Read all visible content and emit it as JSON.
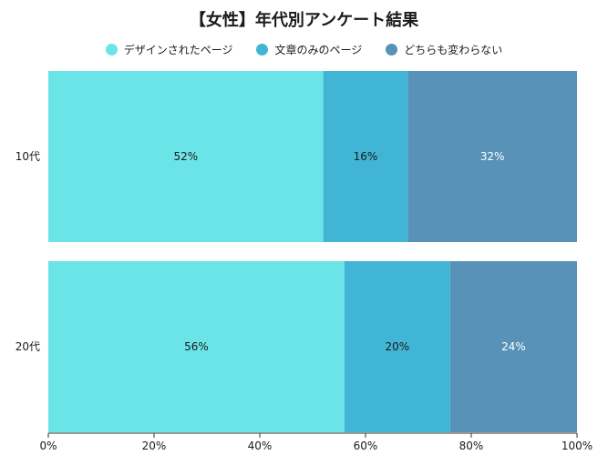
{
  "chart_data": {
    "type": "bar",
    "orientation": "horizontal",
    "stacked": true,
    "title": "【女性】年代別アンケート結果",
    "categories": [
      "10代",
      "20代"
    ],
    "series": [
      {
        "name": "デザインされたページ",
        "values": [
          52,
          56
        ],
        "color": "#6be4e8"
      },
      {
        "name": "文章のみのページ",
        "values": [
          16,
          20
        ],
        "color": "#41b5d5"
      },
      {
        "name": "どちらも変わらない",
        "values": [
          32,
          24
        ],
        "color": "#5892b9"
      }
    ],
    "value_labels": [
      [
        "52%",
        "56%"
      ],
      [
        "16%",
        "20%"
      ],
      [
        "32%",
        "24%"
      ]
    ],
    "label_colors": [
      "#1a1a1a",
      "#1a1a1a",
      "#ffffff"
    ],
    "xlim": [
      0,
      100
    ],
    "x_ticks": [
      0,
      20,
      40,
      60,
      80,
      100
    ],
    "x_tick_labels": [
      "0%",
      "20%",
      "40%",
      "60%",
      "80%",
      "100%"
    ],
    "legend": "top-center",
    "grid": false
  }
}
